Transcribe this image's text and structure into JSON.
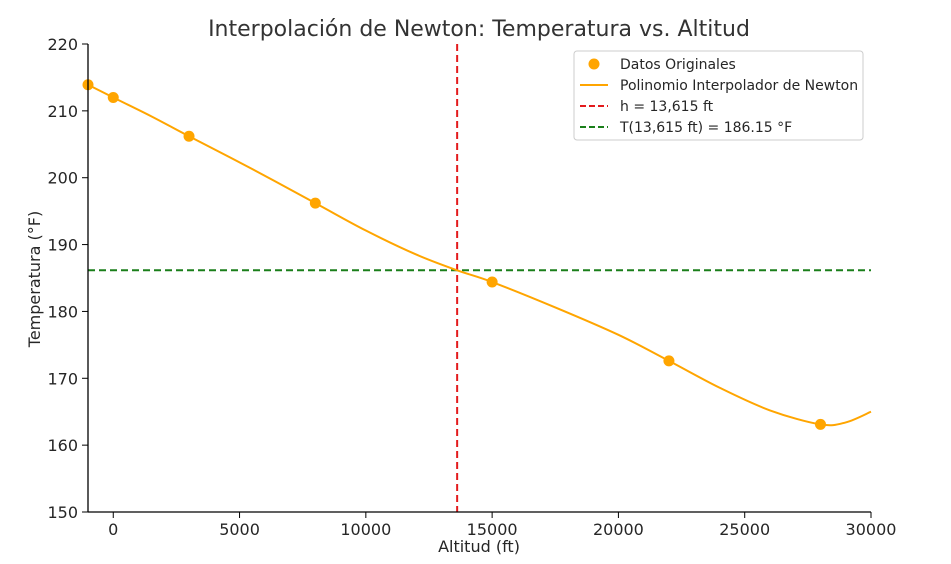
{
  "chart_data": {
    "type": "line",
    "title": "Interpolación de Newton: Temperatura vs. Altitud",
    "xlabel": "Altitud (ft)",
    "ylabel": "Temperatura (°F)",
    "xlim": [
      -1000,
      30000
    ],
    "ylim": [
      150,
      220
    ],
    "x_ticks": [
      0,
      5000,
      10000,
      15000,
      20000,
      25000,
      30000
    ],
    "y_ticks": [
      150,
      160,
      170,
      180,
      190,
      200,
      210,
      220
    ],
    "grid": false,
    "legend_position": "top-right",
    "colors": {
      "data": "#FFA500",
      "polynomial": "#FFA500",
      "altitude_line": "#E31A1C",
      "temperature_line": "#1A7F1A",
      "axis": "#000000"
    },
    "series": [
      {
        "name": "Datos Originales",
        "kind": "scatter",
        "points": [
          {
            "x": -1000,
            "y": 213.9
          },
          {
            "x": 0,
            "y": 212.0
          },
          {
            "x": 3000,
            "y": 206.2
          },
          {
            "x": 8000,
            "y": 196.2
          },
          {
            "x": 15000,
            "y": 184.4
          },
          {
            "x": 22000,
            "y": 172.6
          },
          {
            "x": 28000,
            "y": 163.1
          }
        ]
      },
      {
        "name": "Polinomio Interpolador de Newton",
        "kind": "line",
        "points": [
          {
            "x": -1000,
            "y": 213.9
          },
          {
            "x": 0,
            "y": 212.0
          },
          {
            "x": 1500,
            "y": 209.2
          },
          {
            "x": 3000,
            "y": 206.2
          },
          {
            "x": 5500,
            "y": 201.3
          },
          {
            "x": 8000,
            "y": 196.2
          },
          {
            "x": 10000,
            "y": 192.1
          },
          {
            "x": 12000,
            "y": 188.5
          },
          {
            "x": 13615,
            "y": 186.15
          },
          {
            "x": 15000,
            "y": 184.4
          },
          {
            "x": 17500,
            "y": 180.6
          },
          {
            "x": 20000,
            "y": 176.5
          },
          {
            "x": 22000,
            "y": 172.6
          },
          {
            "x": 24000,
            "y": 168.6
          },
          {
            "x": 26000,
            "y": 165.2
          },
          {
            "x": 28000,
            "y": 163.1
          },
          {
            "x": 29000,
            "y": 163.4
          },
          {
            "x": 30000,
            "y": 165.0
          }
        ]
      }
    ],
    "reference_lines": [
      {
        "name": "h = 13,615 ft",
        "orientation": "vertical",
        "value": 13615,
        "style": "dashed"
      },
      {
        "name": "T(13,615 ft) = 186.15 °F",
        "orientation": "horizontal",
        "value": 186.15,
        "style": "dashed"
      }
    ]
  }
}
